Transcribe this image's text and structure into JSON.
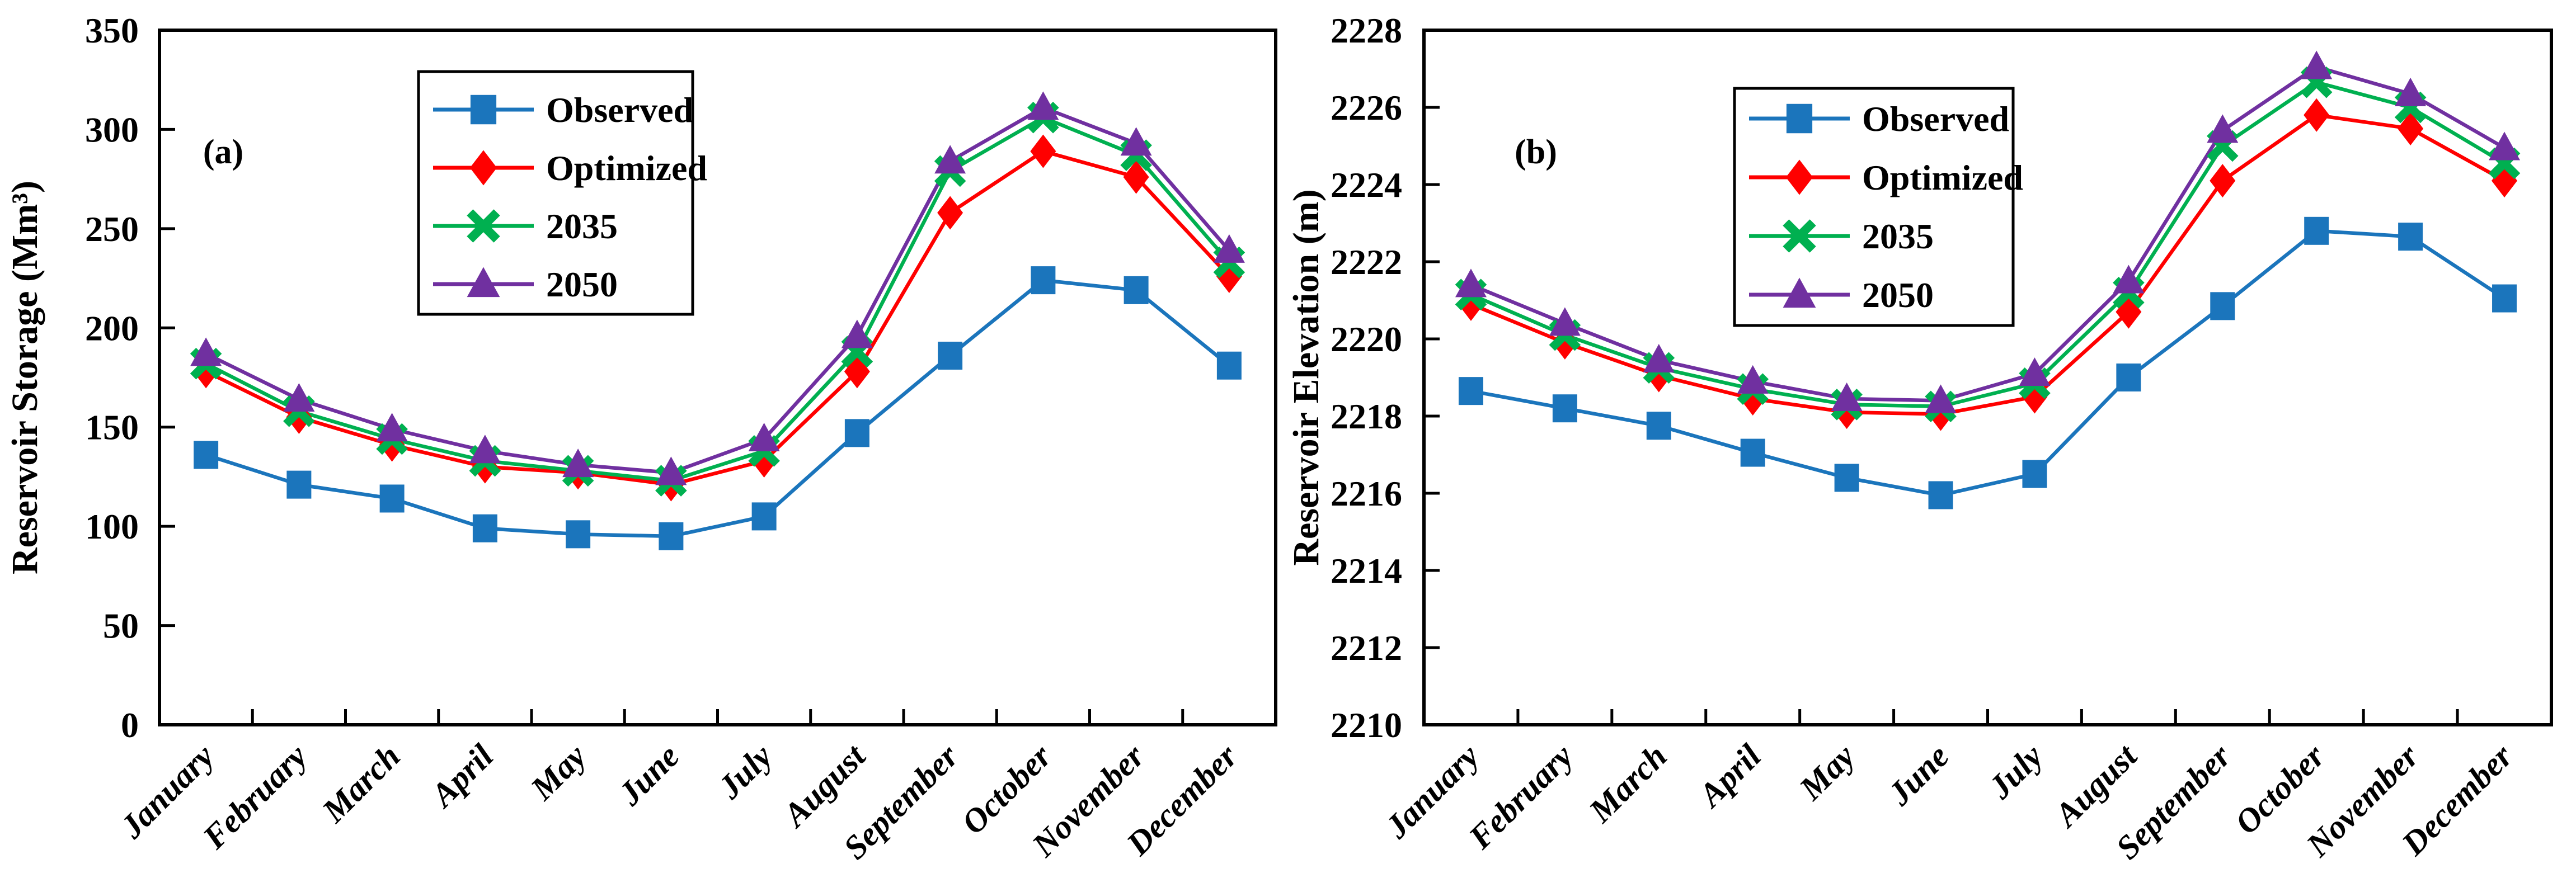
{
  "figure": {
    "background": "#ffffff",
    "frame_color": "#000000",
    "text_color": "#000000"
  },
  "chart_data": [
    {
      "type": "line",
      "panel_label": "(a)",
      "title": "",
      "xlabel": "",
      "ylabel": "Reservoir Storage (Mm³)",
      "ylim": [
        0,
        350
      ],
      "ytick_step": 50,
      "ytick_labels": [
        "0",
        "50",
        "100",
        "150",
        "200",
        "250",
        "300",
        "350"
      ],
      "grid": false,
      "legend_position": "upper-center-inside",
      "categories": [
        "January",
        "February",
        "March",
        "April",
        "May",
        "June",
        "July",
        "August",
        "September",
        "October",
        "November",
        "December"
      ],
      "series": [
        {
          "name": "Observed",
          "color": "#1B75BC",
          "marker": "square",
          "values": [
            136,
            121,
            114,
            99,
            96,
            95,
            105,
            147,
            186,
            224,
            219,
            181
          ]
        },
        {
          "name": "Optimized",
          "color": "#FF0000",
          "marker": "diamond",
          "values": [
            178,
            155,
            141,
            130,
            127,
            121,
            133,
            178,
            258,
            289,
            276,
            226
          ]
        },
        {
          "name": "2035",
          "color": "#00B050",
          "marker": "xmark",
          "values": [
            182,
            158,
            144,
            133,
            128,
            123,
            138,
            188,
            279,
            306,
            287,
            233
          ]
        },
        {
          "name": "2050",
          "color": "#7030A0",
          "marker": "triangle",
          "values": [
            187,
            164,
            149,
            138,
            131,
            127,
            144,
            196,
            284,
            311,
            293,
            239
          ]
        }
      ]
    },
    {
      "type": "line",
      "panel_label": "(b)",
      "title": "",
      "xlabel": "",
      "ylabel": "Reservoir Elevation (m)",
      "ylim": [
        2210,
        2228
      ],
      "ytick_step": 2,
      "ytick_labels": [
        "2210",
        "2212",
        "2214",
        "2216",
        "2218",
        "2220",
        "2222",
        "2224",
        "2226",
        "2228"
      ],
      "grid": false,
      "legend_position": "upper-center-inside",
      "categories": [
        "January",
        "February",
        "March",
        "April",
        "May",
        "June",
        "July",
        "August",
        "September",
        "October",
        "November",
        "December"
      ],
      "series": [
        {
          "name": "Observed",
          "color": "#1B75BC",
          "marker": "square",
          "values": [
            2218.65,
            2218.2,
            2217.75,
            2217.05,
            2216.4,
            2215.95,
            2216.5,
            2219.0,
            2220.85,
            2222.8,
            2222.65,
            2221.05
          ]
        },
        {
          "name": "Optimized",
          "color": "#FF0000",
          "marker": "diamond",
          "values": [
            2220.9,
            2219.9,
            2219.05,
            2218.45,
            2218.1,
            2218.05,
            2218.5,
            2220.7,
            2224.1,
            2225.8,
            2225.45,
            2224.1
          ]
        },
        {
          "name": "2035",
          "color": "#00B050",
          "marker": "xmark",
          "values": [
            2221.15,
            2220.1,
            2219.25,
            2218.7,
            2218.3,
            2218.25,
            2218.85,
            2221.2,
            2225.0,
            2226.65,
            2226.0,
            2224.55
          ]
        },
        {
          "name": "2050",
          "color": "#7030A0",
          "marker": "triangle",
          "values": [
            2221.4,
            2220.4,
            2219.45,
            2218.9,
            2218.45,
            2218.4,
            2219.1,
            2221.5,
            2225.4,
            2227.05,
            2226.35,
            2224.95
          ]
        }
      ]
    }
  ]
}
